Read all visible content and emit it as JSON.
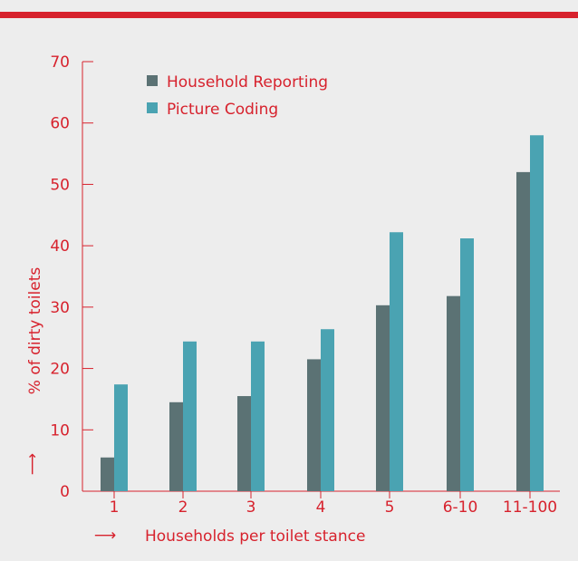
{
  "colors": {
    "accent": "#d7222d",
    "background": "#ededed",
    "household_reporting": "#5b7274",
    "picture_coding": "#4aa3b2",
    "axis_text": "#d7222d",
    "legend_text": "#d7222d"
  },
  "chart_data": {
    "type": "bar",
    "title": "",
    "xlabel": "Households per toilet stance",
    "ylabel": "% of dirty toilets",
    "xlabel_arrow": "⟶",
    "ylabel_arrow": "⟶",
    "categories": [
      "1",
      "2",
      "3",
      "4",
      "5",
      "6-10",
      "11-100"
    ],
    "ylim": [
      0,
      70
    ],
    "yticks": [
      "0",
      "10",
      "20",
      "30",
      "40",
      "50",
      "60",
      "70"
    ],
    "grid": false,
    "legend_position": "top-left",
    "series": [
      {
        "name": "Household Reporting",
        "color": "#5b7274",
        "values": [
          5.5,
          14.5,
          15.5,
          21.5,
          30.3,
          31.8,
          52
        ]
      },
      {
        "name": "Picture Coding",
        "color": "#4aa3b2",
        "values": [
          17.4,
          24.4,
          24.4,
          26.4,
          42.2,
          41.2,
          58
        ]
      }
    ]
  }
}
